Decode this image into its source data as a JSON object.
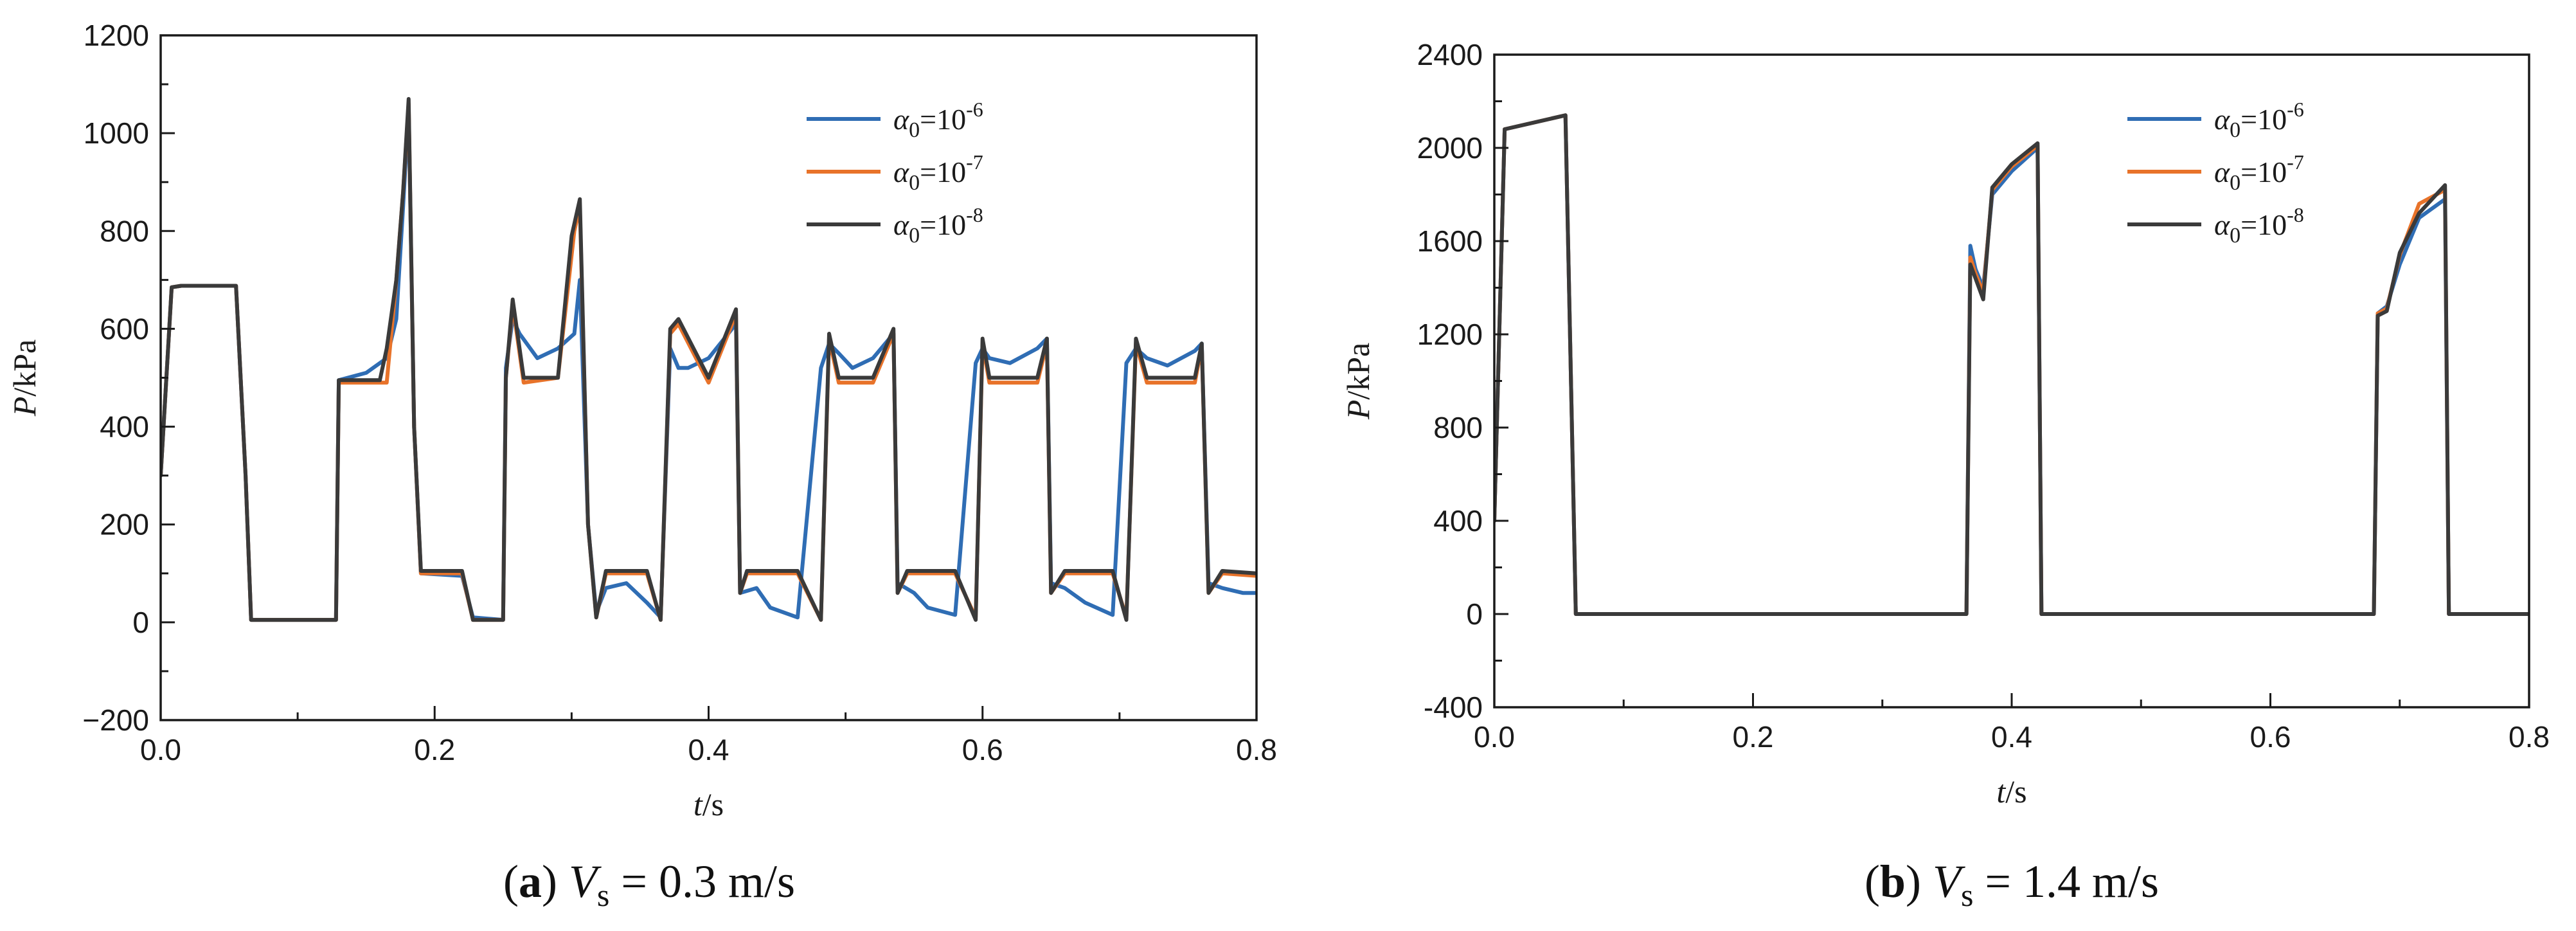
{
  "chart_data": [
    {
      "type": "line",
      "panel_label": "a",
      "caption_var": "V",
      "caption_sub": "s",
      "caption_rest": " = 0.3 m/s",
      "xlabel_var": "t",
      "xlabel_unit": "/s",
      "ylabel_var": "P",
      "ylabel_unit": "/kPa",
      "xlim": [
        0,
        0.8
      ],
      "ylim": [
        -200,
        1200
      ],
      "xticks": [
        0.0,
        0.2,
        0.4,
        0.6,
        0.8
      ],
      "xtick_labels": [
        "0.0",
        "0.2",
        "0.4",
        "0.6",
        "0.8"
      ],
      "yticks": [
        -200,
        0,
        200,
        400,
        600,
        800,
        1000,
        1200
      ],
      "ytick_labels": [
        "−200",
        "0",
        "200",
        "400",
        "600",
        "800",
        "1000",
        "1200"
      ],
      "legend_position": "top-right",
      "grid": false,
      "series": [
        {
          "name_base": "α",
          "name_sub": "0",
          "name_mid": "=10",
          "name_sup": "-6",
          "color": "#2f6db4",
          "x": [
            0,
            0.008,
            0.015,
            0.055,
            0.062,
            0.066,
            0.128,
            0.13,
            0.15,
            0.165,
            0.172,
            0.177,
            0.181,
            0.185,
            0.19,
            0.22,
            0.228,
            0.25,
            0.252,
            0.257,
            0.262,
            0.275,
            0.29,
            0.302,
            0.306,
            0.312,
            0.318,
            0.325,
            0.34,
            0.355,
            0.365,
            0.372,
            0.378,
            0.385,
            0.4,
            0.42,
            0.423,
            0.435,
            0.445,
            0.465,
            0.482,
            0.488,
            0.495,
            0.505,
            0.52,
            0.535,
            0.538,
            0.55,
            0.56,
            0.58,
            0.595,
            0.6,
            0.605,
            0.62,
            0.64,
            0.647,
            0.65,
            0.66,
            0.675,
            0.695,
            0.705,
            0.712,
            0.72,
            0.735,
            0.755,
            0.76,
            0.765,
            0.775,
            0.79,
            0.8
          ],
          "y": [
            300,
            685,
            688,
            688,
            300,
            5,
            5,
            495,
            510,
            540,
            620,
            850,
            1050,
            400,
            100,
            95,
            10,
            5,
            520,
            620,
            590,
            540,
            560,
            590,
            700,
            200,
            20,
            70,
            80,
            40,
            10,
            560,
            520,
            520,
            540,
            610,
            60,
            70,
            30,
            10,
            520,
            570,
            550,
            520,
            540,
            590,
            80,
            60,
            30,
            15,
            530,
            560,
            540,
            530,
            560,
            580,
            80,
            70,
            40,
            15,
            530,
            560,
            540,
            525,
            555,
            570,
            80,
            70,
            60,
            60
          ]
        },
        {
          "name_base": "α",
          "name_sub": "0",
          "name_mid": "=10",
          "name_sup": "-7",
          "color": "#e8732a",
          "x": [
            0,
            0.008,
            0.015,
            0.055,
            0.062,
            0.066,
            0.128,
            0.13,
            0.165,
            0.172,
            0.177,
            0.181,
            0.185,
            0.19,
            0.22,
            0.228,
            0.25,
            0.252,
            0.257,
            0.265,
            0.29,
            0.302,
            0.306,
            0.312,
            0.318,
            0.325,
            0.355,
            0.365,
            0.372,
            0.378,
            0.4,
            0.42,
            0.423,
            0.428,
            0.465,
            0.482,
            0.488,
            0.495,
            0.52,
            0.535,
            0.538,
            0.545,
            0.58,
            0.595,
            0.6,
            0.605,
            0.64,
            0.647,
            0.65,
            0.66,
            0.695,
            0.705,
            0.712,
            0.72,
            0.755,
            0.76,
            0.765,
            0.775,
            0.8
          ],
          "y": [
            300,
            685,
            688,
            688,
            300,
            5,
            5,
            490,
            490,
            700,
            880,
            1060,
            400,
            100,
            100,
            5,
            5,
            500,
            650,
            490,
            500,
            800,
            850,
            200,
            10,
            100,
            100,
            5,
            590,
            610,
            490,
            630,
            60,
            100,
            100,
            5,
            580,
            490,
            490,
            590,
            60,
            100,
            100,
            10,
            570,
            490,
            490,
            570,
            60,
            100,
            100,
            10,
            570,
            490,
            490,
            565,
            60,
            100,
            95
          ]
        },
        {
          "name_base": "α",
          "name_sub": "0",
          "name_mid": "=10",
          "name_sup": "-8",
          "color": "#3a3a3a",
          "x": [
            0,
            0.008,
            0.015,
            0.055,
            0.062,
            0.066,
            0.128,
            0.13,
            0.16,
            0.165,
            0.172,
            0.177,
            0.181,
            0.185,
            0.19,
            0.22,
            0.228,
            0.25,
            0.252,
            0.257,
            0.265,
            0.29,
            0.3,
            0.306,
            0.312,
            0.318,
            0.325,
            0.355,
            0.365,
            0.372,
            0.378,
            0.4,
            0.42,
            0.423,
            0.428,
            0.465,
            0.482,
            0.488,
            0.495,
            0.52,
            0.535,
            0.538,
            0.545,
            0.58,
            0.595,
            0.6,
            0.605,
            0.64,
            0.647,
            0.65,
            0.66,
            0.695,
            0.705,
            0.712,
            0.72,
            0.755,
            0.76,
            0.765,
            0.775,
            0.8
          ],
          "y": [
            300,
            685,
            688,
            688,
            300,
            5,
            5,
            495,
            495,
            560,
            700,
            880,
            1070,
            400,
            105,
            105,
            5,
            5,
            500,
            660,
            500,
            500,
            790,
            865,
            200,
            10,
            105,
            105,
            5,
            600,
            620,
            500,
            640,
            60,
            105,
            105,
            5,
            590,
            500,
            500,
            600,
            60,
            105,
            105,
            5,
            580,
            500,
            500,
            580,
            60,
            105,
            105,
            5,
            580,
            500,
            500,
            570,
            60,
            105,
            100
          ]
        }
      ]
    },
    {
      "type": "line",
      "panel_label": "b",
      "caption_var": "V",
      "caption_sub": "s",
      "caption_rest": " = 1.4 m/s",
      "xlabel_var": "t",
      "xlabel_unit": "/s",
      "ylabel_var": "P",
      "ylabel_unit": "/kPa",
      "xlim": [
        0,
        0.8
      ],
      "ylim": [
        -400,
        2400
      ],
      "xticks": [
        0.0,
        0.2,
        0.4,
        0.6,
        0.8
      ],
      "xtick_labels": [
        "0.0",
        "0.2",
        "0.4",
        "0.6",
        "0.8"
      ],
      "yticks": [
        -400,
        0,
        400,
        800,
        1200,
        1600,
        2000,
        2400
      ],
      "ytick_labels": [
        "-400",
        "0",
        "400",
        "800",
        "1200",
        "1600",
        "2000",
        "2400"
      ],
      "legend_position": "top-right",
      "grid": false,
      "series": [
        {
          "name_base": "α",
          "name_sub": "0",
          "name_mid": "=10",
          "name_sup": "-6",
          "color": "#2f6db4",
          "x": [
            0,
            0.008,
            0.055,
            0.06,
            0.063,
            0.365,
            0.368,
            0.372,
            0.378,
            0.385,
            0.4,
            0.42,
            0.423,
            0.68,
            0.683,
            0.69,
            0.7,
            0.715,
            0.735,
            0.738,
            0.8
          ],
          "y": [
            400,
            2080,
            2140,
            800,
            0,
            0,
            1580,
            1480,
            1400,
            1800,
            1900,
            2000,
            0,
            0,
            1290,
            1320,
            1500,
            1700,
            1780,
            0,
            0
          ]
        },
        {
          "name_base": "α",
          "name_sub": "0",
          "name_mid": "=10",
          "name_sup": "-7",
          "color": "#e8732a",
          "x": [
            0,
            0.008,
            0.055,
            0.06,
            0.063,
            0.365,
            0.368,
            0.372,
            0.378,
            0.385,
            0.4,
            0.42,
            0.423,
            0.68,
            0.683,
            0.69,
            0.7,
            0.715,
            0.735,
            0.738,
            0.8
          ],
          "y": [
            400,
            2080,
            2140,
            800,
            0,
            0,
            1530,
            1460,
            1380,
            1820,
            1920,
            2010,
            0,
            0,
            1290,
            1310,
            1540,
            1760,
            1820,
            0,
            0
          ]
        },
        {
          "name_base": "α",
          "name_sub": "0",
          "name_mid": "=10",
          "name_sup": "-8",
          "color": "#3a3a3a",
          "x": [
            0,
            0.008,
            0.055,
            0.06,
            0.063,
            0.365,
            0.368,
            0.372,
            0.378,
            0.385,
            0.4,
            0.42,
            0.423,
            0.68,
            0.683,
            0.69,
            0.7,
            0.715,
            0.735,
            0.738,
            0.8
          ],
          "y": [
            400,
            2080,
            2140,
            800,
            0,
            0,
            1500,
            1440,
            1350,
            1830,
            1930,
            2020,
            0,
            0,
            1280,
            1300,
            1550,
            1720,
            1840,
            0,
            0
          ]
        }
      ]
    }
  ]
}
